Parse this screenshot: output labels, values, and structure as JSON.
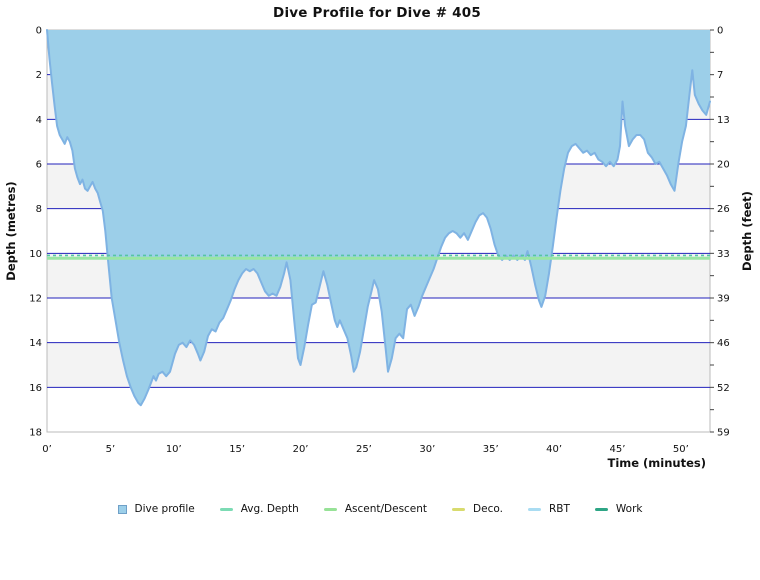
{
  "title": "Dive Profile for Dive # 405",
  "axes": {
    "left": {
      "title": "Depth (metres)",
      "ticks": [
        "0",
        "2",
        "4",
        "6",
        "8",
        "10",
        "12",
        "14",
        "16",
        "18"
      ]
    },
    "right": {
      "title": "Depth (feet)",
      "ticks": [
        "0",
        "7",
        "13",
        "20",
        "26",
        "33",
        "39",
        "46",
        "52",
        "59"
      ]
    },
    "x": {
      "title": "Time (minutes)",
      "ticks": [
        "0’",
        "5’",
        "10’",
        "15’",
        "20’",
        "25’",
        "30’",
        "35’",
        "40’",
        "45’",
        "50’"
      ]
    }
  },
  "legend": [
    {
      "label": "Dive profile",
      "type": "square",
      "color": "#9CCFE9",
      "border": "#6FA0C8"
    },
    {
      "label": "Avg. Depth",
      "type": "line",
      "color": "#7CDBB4"
    },
    {
      "label": "Ascent/Descent",
      "type": "line",
      "color": "#97E297"
    },
    {
      "label": "Deco.",
      "type": "line",
      "color": "#D8DB6E"
    },
    {
      "label": "RBT",
      "type": "line",
      "color": "#A9DCF2"
    },
    {
      "label": "Work",
      "type": "line",
      "color": "#2EA585"
    }
  ],
  "colors": {
    "area_fill": "#9CCFE9",
    "area_stroke": "#7FB3E3",
    "gridline": "#2222BB",
    "band_gray": "#F3F3F3",
    "band_white": "#FFFFFF",
    "plot_border": "#BBBBBB",
    "avg_depth_line": "#9AE6A4",
    "avg_depth_dash": "#55C5A5",
    "tick": "#444444",
    "label": "#111111"
  },
  "chart_data": {
    "type": "area",
    "title": "Dive Profile for Dive # 405",
    "xlabel": "Time (minutes)",
    "ylabel_left": "Depth (metres)",
    "ylabel_right": "Depth (feet)",
    "xlim_minutes": [
      0,
      52.3
    ],
    "ylim_metres": [
      0,
      18
    ],
    "x_ticks_minutes": [
      0,
      5,
      10,
      15,
      20,
      25,
      30,
      35,
      40,
      45,
      50
    ],
    "left_ticks_metres": [
      0,
      2,
      4,
      6,
      8,
      10,
      12,
      14,
      16,
      18
    ],
    "right_ticks_feet": [
      0,
      7,
      13,
      20,
      26,
      33,
      39,
      46,
      52,
      59
    ],
    "grid": "horizontal-every-2m",
    "legend_position": "bottom-center",
    "avg_depth_m": 10.2,
    "series_name": "Dive profile",
    "points_t_min_depth_m": [
      [
        0,
        0
      ],
      [
        0.2,
        1.3
      ],
      [
        0.4,
        2.4
      ],
      [
        0.6,
        3.4
      ],
      [
        0.8,
        4.3
      ],
      [
        1,
        4.7
      ],
      [
        1.2,
        4.9
      ],
      [
        1.4,
        5.1
      ],
      [
        1.6,
        4.8
      ],
      [
        1.8,
        5
      ],
      [
        2,
        5.4
      ],
      [
        2.2,
        6.2
      ],
      [
        2.4,
        6.6
      ],
      [
        2.6,
        6.9
      ],
      [
        2.8,
        6.7
      ],
      [
        3,
        7.1
      ],
      [
        3.2,
        7.2
      ],
      [
        3.4,
        7
      ],
      [
        3.6,
        6.8
      ],
      [
        3.8,
        7.1
      ],
      [
        4,
        7.3
      ],
      [
        4.2,
        7.7
      ],
      [
        4.4,
        8.1
      ],
      [
        4.6,
        9
      ],
      [
        4.8,
        10.2
      ],
      [
        5.1,
        12
      ],
      [
        5.4,
        13
      ],
      [
        5.7,
        14
      ],
      [
        6,
        14.8
      ],
      [
        6.3,
        15.5
      ],
      [
        6.6,
        16
      ],
      [
        6.9,
        16.4
      ],
      [
        7.2,
        16.7
      ],
      [
        7.4,
        16.8
      ],
      [
        7.7,
        16.5
      ],
      [
        8,
        16.1
      ],
      [
        8.2,
        15.8
      ],
      [
        8.4,
        15.5
      ],
      [
        8.6,
        15.7
      ],
      [
        8.8,
        15.4
      ],
      [
        9.1,
        15.3
      ],
      [
        9.4,
        15.5
      ],
      [
        9.7,
        15.3
      ],
      [
        9.9,
        14.9
      ],
      [
        10.1,
        14.5
      ],
      [
        10.4,
        14.1
      ],
      [
        10.7,
        14
      ],
      [
        11,
        14.2
      ],
      [
        11.3,
        13.9
      ],
      [
        11.6,
        14.1
      ],
      [
        11.9,
        14.5
      ],
      [
        12.1,
        14.8
      ],
      [
        12.4,
        14.4
      ],
      [
        12.7,
        13.7
      ],
      [
        13,
        13.4
      ],
      [
        13.3,
        13.5
      ],
      [
        13.6,
        13.1
      ],
      [
        13.9,
        12.9
      ],
      [
        14.2,
        12.5
      ],
      [
        14.5,
        12.1
      ],
      [
        14.8,
        11.6
      ],
      [
        15.1,
        11.2
      ],
      [
        15.4,
        10.9
      ],
      [
        15.7,
        10.7
      ],
      [
        16,
        10.8
      ],
      [
        16.3,
        10.7
      ],
      [
        16.6,
        10.9
      ],
      [
        16.9,
        11.3
      ],
      [
        17.2,
        11.7
      ],
      [
        17.5,
        11.9
      ],
      [
        17.8,
        11.8
      ],
      [
        18.1,
        11.9
      ],
      [
        18.4,
        11.5
      ],
      [
        18.7,
        10.9
      ],
      [
        18.9,
        10.4
      ],
      [
        19.2,
        11.2
      ],
      [
        19.5,
        13
      ],
      [
        19.8,
        14.7
      ],
      [
        20,
        15
      ],
      [
        20.3,
        14.2
      ],
      [
        20.6,
        13.2
      ],
      [
        20.9,
        12.3
      ],
      [
        21.2,
        12.2
      ],
      [
        21.5,
        11.5
      ],
      [
        21.8,
        10.8
      ],
      [
        22.1,
        11.4
      ],
      [
        22.4,
        12.2
      ],
      [
        22.7,
        13
      ],
      [
        22.9,
        13.3
      ],
      [
        23.1,
        13
      ],
      [
        23.4,
        13.4
      ],
      [
        23.7,
        13.8
      ],
      [
        24,
        14.6
      ],
      [
        24.2,
        15.3
      ],
      [
        24.4,
        15.1
      ],
      [
        24.7,
        14.4
      ],
      [
        25,
        13.4
      ],
      [
        25.3,
        12.4
      ],
      [
        25.6,
        11.7
      ],
      [
        25.8,
        11.2
      ],
      [
        26.1,
        11.6
      ],
      [
        26.4,
        12.6
      ],
      [
        26.7,
        14.2
      ],
      [
        26.9,
        15.3
      ],
      [
        27.2,
        14.7
      ],
      [
        27.5,
        13.8
      ],
      [
        27.8,
        13.6
      ],
      [
        28.1,
        13.8
      ],
      [
        28.4,
        12.5
      ],
      [
        28.7,
        12.3
      ],
      [
        29,
        12.8
      ],
      [
        29.3,
        12.4
      ],
      [
        29.6,
        11.9
      ],
      [
        29.9,
        11.5
      ],
      [
        30.2,
        11.1
      ],
      [
        30.5,
        10.7
      ],
      [
        30.8,
        10.2
      ],
      [
        31.1,
        9.7
      ],
      [
        31.4,
        9.3
      ],
      [
        31.7,
        9.1
      ],
      [
        32,
        9
      ],
      [
        32.3,
        9.1
      ],
      [
        32.6,
        9.3
      ],
      [
        32.9,
        9.1
      ],
      [
        33.2,
        9.4
      ],
      [
        33.5,
        9
      ],
      [
        33.8,
        8.6
      ],
      [
        34.1,
        8.3
      ],
      [
        34.4,
        8.2
      ],
      [
        34.7,
        8.4
      ],
      [
        35,
        8.9
      ],
      [
        35.3,
        9.6
      ],
      [
        35.6,
        10.1
      ],
      [
        35.9,
        10.3
      ],
      [
        36.2,
        10.1
      ],
      [
        36.5,
        10.3
      ],
      [
        36.8,
        10.1
      ],
      [
        37.1,
        10.3
      ],
      [
        37.4,
        10.1
      ],
      [
        37.7,
        10.3
      ],
      [
        37.9,
        9.9
      ],
      [
        38.2,
        10.6
      ],
      [
        38.5,
        11.4
      ],
      [
        38.8,
        12.1
      ],
      [
        39,
        12.4
      ],
      [
        39.3,
        11.9
      ],
      [
        39.6,
        10.9
      ],
      [
        39.9,
        9.7
      ],
      [
        40.2,
        8.4
      ],
      [
        40.5,
        7.2
      ],
      [
        40.8,
        6.2
      ],
      [
        41.1,
        5.5
      ],
      [
        41.4,
        5.2
      ],
      [
        41.7,
        5.1
      ],
      [
        42,
        5.3
      ],
      [
        42.3,
        5.5
      ],
      [
        42.6,
        5.4
      ],
      [
        42.9,
        5.6
      ],
      [
        43.2,
        5.5
      ],
      [
        43.5,
        5.8
      ],
      [
        43.8,
        5.9
      ],
      [
        44.1,
        6.1
      ],
      [
        44.4,
        5.9
      ],
      [
        44.7,
        6.1
      ],
      [
        45,
        5.8
      ],
      [
        45.2,
        5.2
      ],
      [
        45.4,
        3.2
      ],
      [
        45.6,
        4.3
      ],
      [
        45.9,
        5.2
      ],
      [
        46.2,
        4.9
      ],
      [
        46.5,
        4.7
      ],
      [
        46.8,
        4.7
      ],
      [
        47.1,
        4.9
      ],
      [
        47.4,
        5.5
      ],
      [
        47.7,
        5.7
      ],
      [
        48,
        6
      ],
      [
        48.3,
        5.9
      ],
      [
        48.6,
        6.2
      ],
      [
        48.9,
        6.5
      ],
      [
        49.2,
        6.9
      ],
      [
        49.5,
        7.2
      ],
      [
        49.8,
        6
      ],
      [
        50.1,
        5
      ],
      [
        50.4,
        4.3
      ],
      [
        50.7,
        2.8
      ],
      [
        50.9,
        1.8
      ],
      [
        51.1,
        2.9
      ],
      [
        51.4,
        3.3
      ],
      [
        51.7,
        3.6
      ],
      [
        52,
        3.8
      ],
      [
        52.3,
        3.2
      ]
    ]
  }
}
